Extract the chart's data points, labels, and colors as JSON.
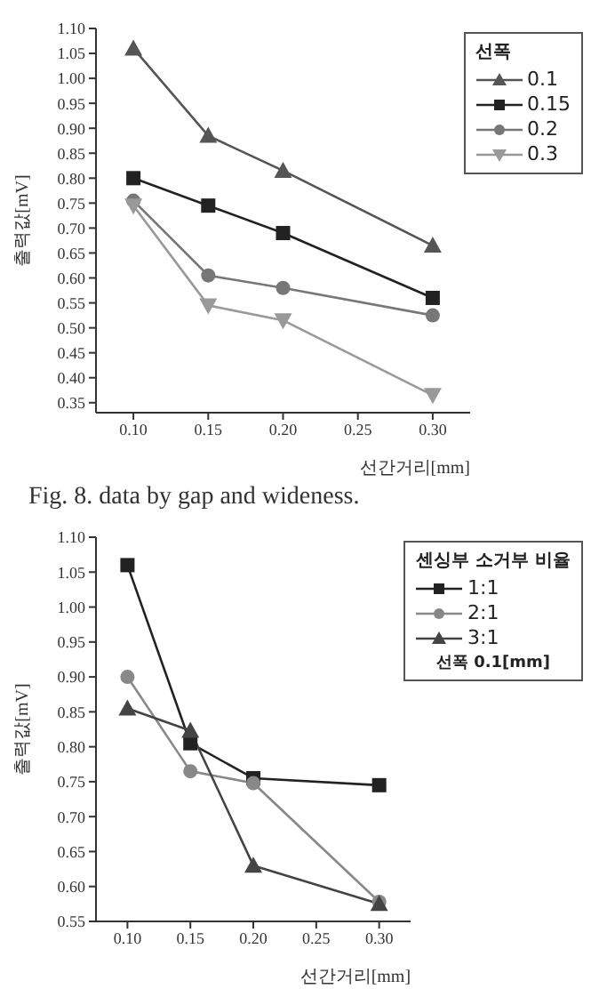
{
  "chart_data": [
    {
      "type": "line",
      "xlabel": "선간거리[mm]",
      "ylabel": "출력값[mV]",
      "legend_title": "선폭",
      "legend": "top right",
      "grid": false,
      "x": [
        0.1,
        0.15,
        0.2,
        0.3
      ],
      "xlim": [
        0.075,
        0.325
      ],
      "xticks": [
        {
          "value": 0.1,
          "label": "0.10"
        },
        {
          "value": 0.15,
          "label": "0.15"
        },
        {
          "value": 0.2,
          "label": "0.20"
        },
        {
          "value": 0.25,
          "label": "0.25"
        },
        {
          "value": 0.3,
          "label": "0.30"
        }
      ],
      "ylim": [
        0.33,
        1.1
      ],
      "yticks": [
        {
          "value": 0.35,
          "label": "0.35"
        },
        {
          "value": 0.4,
          "label": "0.40"
        },
        {
          "value": 0.45,
          "label": "0.45"
        },
        {
          "value": 0.5,
          "label": "0.50"
        },
        {
          "value": 0.55,
          "label": "0.55"
        },
        {
          "value": 0.6,
          "label": "0.60"
        },
        {
          "value": 0.65,
          "label": "0.65"
        },
        {
          "value": 0.7,
          "label": "0.70"
        },
        {
          "value": 0.75,
          "label": "0.75"
        },
        {
          "value": 0.8,
          "label": "0.80"
        },
        {
          "value": 0.85,
          "label": "0.85"
        },
        {
          "value": 0.9,
          "label": "0.90"
        },
        {
          "value": 0.95,
          "label": "0.95"
        },
        {
          "value": 1.0,
          "label": "1.00"
        },
        {
          "value": 1.05,
          "label": "1.05"
        },
        {
          "value": 1.1,
          "label": "1.10"
        }
      ],
      "series": [
        {
          "name": "0.1",
          "color": "#555555",
          "marker": "triangle",
          "values": [
            1.06,
            0.885,
            0.815,
            0.665
          ]
        },
        {
          "name": "0.15",
          "color": "#222222",
          "marker": "square",
          "values": [
            0.8,
            0.745,
            0.69,
            0.56
          ]
        },
        {
          "name": "0.2",
          "color": "#777777",
          "marker": "circle",
          "values": [
            0.755,
            0.605,
            0.58,
            0.525
          ]
        },
        {
          "name": "0.3",
          "color": "#999999",
          "marker": "triangle-down",
          "values": [
            0.745,
            0.545,
            0.515,
            0.365
          ]
        }
      ],
      "annotations": [
        "Fig. 8. data by gap and wideness."
      ]
    },
    {
      "type": "line",
      "xlabel": "선간거리[mm]",
      "ylabel": "출력값[mV]",
      "legend_title": "센싱부 소거부 비율",
      "legend": "top right",
      "grid": false,
      "x": [
        0.1,
        0.15,
        0.2,
        0.3
      ],
      "xlim": [
        0.075,
        0.325
      ],
      "xticks": [
        {
          "value": 0.1,
          "label": "0.10"
        },
        {
          "value": 0.15,
          "label": "0.15"
        },
        {
          "value": 0.2,
          "label": "0.20"
        },
        {
          "value": 0.25,
          "label": "0.25"
        },
        {
          "value": 0.3,
          "label": "0.30"
        }
      ],
      "ylim": [
        0.55,
        1.1
      ],
      "yticks": [
        {
          "value": 0.55,
          "label": "0.55"
        },
        {
          "value": 0.6,
          "label": "0.60"
        },
        {
          "value": 0.65,
          "label": "0.65"
        },
        {
          "value": 0.7,
          "label": "0.70"
        },
        {
          "value": 0.75,
          "label": "0.75"
        },
        {
          "value": 0.8,
          "label": "0.80"
        },
        {
          "value": 0.85,
          "label": "0.85"
        },
        {
          "value": 0.9,
          "label": "0.90"
        },
        {
          "value": 0.95,
          "label": "0.95"
        },
        {
          "value": 1.0,
          "label": "1.00"
        },
        {
          "value": 1.05,
          "label": "1.05"
        },
        {
          "value": 1.1,
          "label": "1.10"
        }
      ],
      "series": [
        {
          "name": "1:1",
          "color": "#222222",
          "marker": "square",
          "values": [
            1.06,
            0.805,
            0.755,
            0.745
          ]
        },
        {
          "name": "2:1",
          "color": "#888888",
          "marker": "circle",
          "values": [
            0.9,
            0.765,
            0.748,
            0.578
          ]
        },
        {
          "name": "3:1",
          "color": "#444444",
          "marker": "triangle",
          "values": [
            0.855,
            0.823,
            0.63,
            0.575
          ]
        }
      ],
      "annotations": [
        "선폭 0.1[mm]"
      ]
    }
  ]
}
